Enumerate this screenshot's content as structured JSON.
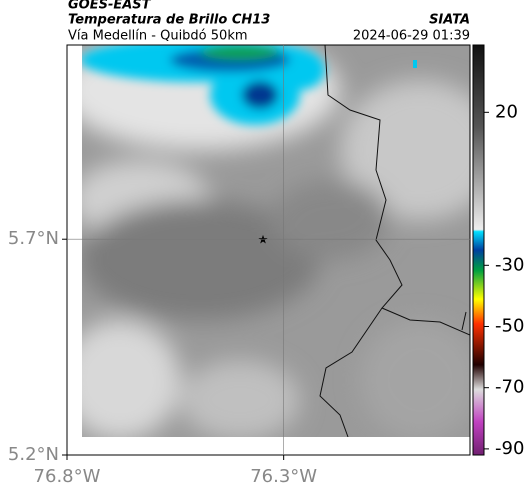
{
  "header": {
    "source": "GOES-EAST",
    "title": "Temperatura de Brillo CH13",
    "credit": "SIATA",
    "subtitle": "Vía Medellín - Quibdó 50km",
    "timestamp": "2024-06-29 01:39"
  },
  "map": {
    "xlim": [
      -76.8,
      -75.87
    ],
    "ylim": [
      5.2,
      6.15
    ],
    "xticks": [
      {
        "value": -76.8,
        "label": "76.8°W"
      },
      {
        "value": -76.3,
        "label": "76.3°W"
      }
    ],
    "yticks": [
      {
        "value": 5.2,
        "label": "5.2°N"
      },
      {
        "value": 5.7,
        "label": "5.7°N"
      }
    ]
  },
  "colorbar": {
    "lim": [
      -92,
      42
    ],
    "ticks": [
      20,
      -30,
      -50,
      -70,
      -90
    ]
  }
}
